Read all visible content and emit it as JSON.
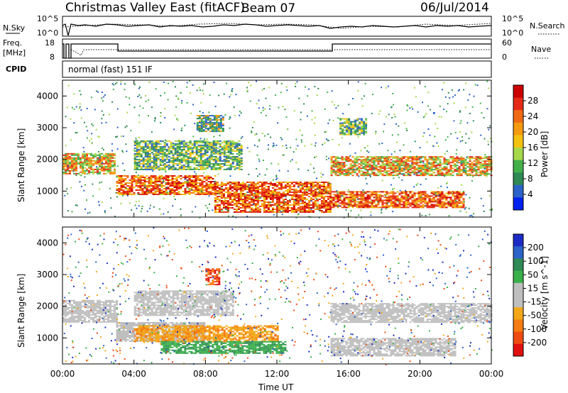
{
  "header": {
    "station": "Christmas Valley East (fitACF)",
    "beam": "Beam 07",
    "date": "06/Jul/2014"
  },
  "panels": {
    "noise": {
      "left_label": "N.Sky",
      "right_label": "N.Search",
      "left_ticks": [
        "10^5",
        "10^0"
      ],
      "right_ticks": [
        "10^5",
        "10^0"
      ]
    },
    "freq": {
      "left_label_1": "Freq.",
      "left_label_2": "[MHz]",
      "right_label": "Nave",
      "left_ticks": [
        "18",
        "8"
      ],
      "right_ticks": [
        "60",
        "0"
      ]
    },
    "cpid": {
      "label": "CPID",
      "text": "normal (fast) 151 IF"
    }
  },
  "colors": {
    "power": [
      "#0022ee",
      "#2b63c8",
      "#2f8a55",
      "#44b04a",
      "#a6d84a",
      "#f3c211",
      "#f59a10",
      "#f06a14",
      "#e52b17",
      "#cc0000"
    ],
    "velocity": [
      "#1c2bc4",
      "#2b63c8",
      "#2f8a55",
      "#3ab04a",
      "#bfbfbf",
      "#bfbfbf",
      "#f3a81a",
      "#f57c12",
      "#ef4c14",
      "#e01010"
    ]
  },
  "chart_data": [
    {
      "type": "heatmap",
      "title": "",
      "ylabel": "Slant Range [km]",
      "xlabel": "",
      "x_ticks": [
        "00:00",
        "04:00",
        "08:00",
        "12:00",
        "16:00",
        "20:00",
        "00:00"
      ],
      "y_ticks": [
        "1000",
        "2000",
        "3000",
        "4000"
      ],
      "xlim_hours": [
        0,
        24
      ],
      "ylim_km": [
        180,
        4500
      ],
      "colorbar": {
        "label": "Power [dB]",
        "ticks": [
          "4",
          "8",
          "12",
          "16",
          "20",
          "24",
          "28"
        ],
        "range": [
          0,
          30
        ]
      },
      "features": [
        {
          "t0": 0.0,
          "t1": 2.9,
          "r0": 1550,
          "r1": 2200,
          "level": "high"
        },
        {
          "t0": 3.0,
          "t1": 8.5,
          "r0": 900,
          "r1": 1500,
          "level": "very high"
        },
        {
          "t0": 8.5,
          "t1": 15.0,
          "r0": 350,
          "r1": 1300,
          "level": "very high"
        },
        {
          "t0": 15.0,
          "t1": 22.5,
          "r0": 500,
          "r1": 1000,
          "level": "very high"
        },
        {
          "t0": 15.0,
          "t1": 24.0,
          "r0": 1500,
          "r1": 2100,
          "level": "high"
        },
        {
          "t0": 4.0,
          "t1": 10.0,
          "r0": 1700,
          "r1": 2600,
          "level": "medium"
        },
        {
          "t0": 7.5,
          "t1": 9.0,
          "r0": 2900,
          "r1": 3400,
          "level": "low"
        },
        {
          "t0": 15.5,
          "t1": 17.0,
          "r0": 2800,
          "r1": 3300,
          "level": "medium"
        }
      ]
    },
    {
      "type": "heatmap",
      "title": "",
      "ylabel": "Slant Range [km]",
      "xlabel": "Time UT",
      "x_ticks": [
        "00:00",
        "04:00",
        "08:00",
        "12:00",
        "16:00",
        "20:00",
        "00:00"
      ],
      "y_ticks": [
        "1000",
        "2000",
        "3000",
        "4000"
      ],
      "xlim_hours": [
        0,
        24
      ],
      "ylim_km": [
        180,
        4500
      ],
      "colorbar": {
        "label": "Velocity [m s^-1]",
        "ticks": [
          "200",
          "100",
          "50",
          "15",
          "-15",
          "-50",
          "-100",
          "-200"
        ],
        "range": [
          -250,
          250
        ]
      },
      "features": [
        {
          "t0": 0.0,
          "t1": 3.0,
          "r0": 1500,
          "r1": 2200,
          "level": "ground scatter"
        },
        {
          "t0": 3.0,
          "t1": 8.0,
          "r0": 900,
          "r1": 1500,
          "level": "ground scatter"
        },
        {
          "t0": 4.0,
          "t1": 9.5,
          "r0": 1700,
          "r1": 2500,
          "level": "ground scatter"
        },
        {
          "t0": 15.0,
          "t1": 24.0,
          "r0": 1500,
          "r1": 2100,
          "level": "ground scatter"
        },
        {
          "t0": 15.0,
          "t1": 22.0,
          "r0": 450,
          "r1": 1000,
          "level": "ground scatter"
        },
        {
          "t0": 4.0,
          "t1": 12.0,
          "r0": 900,
          "r1": 1400,
          "level": "negative"
        },
        {
          "t0": 5.5,
          "t1": 12.5,
          "r0": 500,
          "r1": 900,
          "level": "positive"
        },
        {
          "t0": 8.0,
          "t1": 8.8,
          "r0": 2700,
          "r1": 3200,
          "level": "strong negative"
        }
      ]
    }
  ]
}
